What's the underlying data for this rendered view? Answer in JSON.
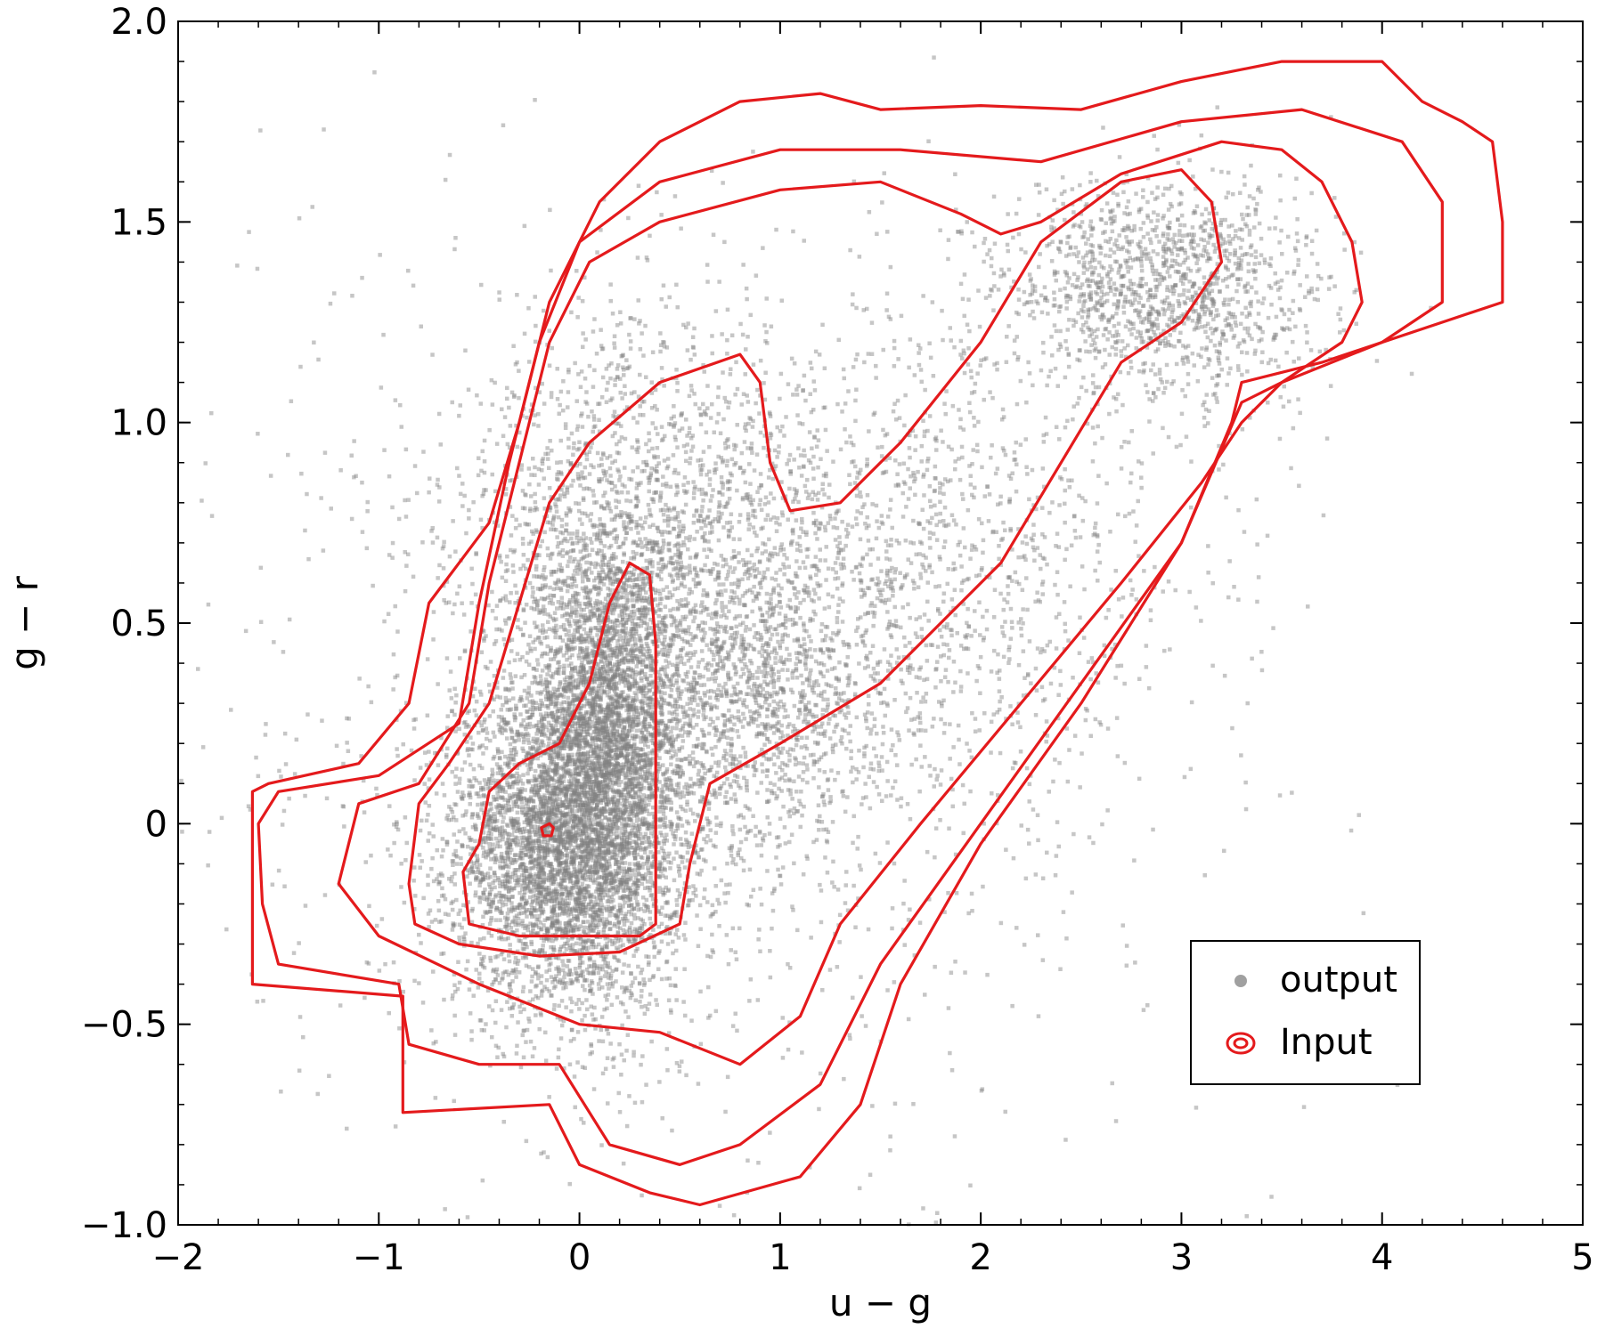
{
  "chart_data": {
    "type": "scatter",
    "xlabel": "u − g",
    "ylabel": "g − r",
    "xlim": [
      -2,
      5
    ],
    "ylim": [
      -1.0,
      2.0
    ],
    "xticks": [
      -2,
      -1,
      0,
      1,
      2,
      3,
      4,
      5
    ],
    "xtick_labels": [
      "−2",
      "−1",
      "0",
      "1",
      "2",
      "3",
      "4",
      "5"
    ],
    "yticks": [
      -1.0,
      -0.5,
      0,
      0.5,
      1.0,
      1.5,
      2.0
    ],
    "ytick_labels": [
      "−1.0",
      "−0.5",
      "0",
      "0.5",
      "1.0",
      "1.5",
      "2.0"
    ],
    "grid": false,
    "legend": {
      "position": "lower-right",
      "entries": [
        {
          "label": "output",
          "marker": "dot",
          "color": "#a0a0a0"
        },
        {
          "label": "Input",
          "marker": "concentric-rings",
          "color": "#e41a1c"
        }
      ]
    },
    "colors": {
      "output": "#808080",
      "input": "#e41a1c"
    },
    "series": [
      {
        "name": "output",
        "kind": "scatter-density",
        "components": [
          {
            "center": [
              -0.05,
              -0.05
            ],
            "spread": [
              0.28,
              0.2
            ],
            "weight": 0.34
          },
          {
            "center": [
              0.15,
              0.3
            ],
            "spread": [
              0.18,
              0.22
            ],
            "weight": 0.16
          },
          {
            "center": [
              0.3,
              0.65
            ],
            "spread": [
              0.45,
              0.3
            ],
            "weight": 0.14
          },
          {
            "center": [
              0.9,
              0.3
            ],
            "spread": [
              0.35,
              0.2
            ],
            "weight": 0.08
          },
          {
            "center": [
              1.6,
              0.65
            ],
            "spread": [
              0.7,
              0.3
            ],
            "weight": 0.1
          },
          {
            "center": [
              2.9,
              1.33
            ],
            "spread": [
              0.4,
              0.14
            ],
            "weight": 0.1
          },
          {
            "center": [
              0.5,
              0.2
            ],
            "spread": [
              1.3,
              0.6
            ],
            "weight": 0.08
          }
        ]
      },
      {
        "name": "Input",
        "kind": "contour",
        "levels": [
          {
            "id": "innermost",
            "points": [
              [
                -0.18,
                -0.03
              ],
              [
                -0.14,
                -0.03
              ],
              [
                -0.13,
                -0.01
              ],
              [
                -0.15,
                0.0
              ],
              [
                -0.19,
                -0.01
              ]
            ]
          },
          {
            "id": "level-2",
            "points": [
              [
                -0.5,
                -0.05
              ],
              [
                -0.45,
                0.08
              ],
              [
                -0.3,
                0.15
              ],
              [
                -0.1,
                0.2
              ],
              [
                0.05,
                0.35
              ],
              [
                0.15,
                0.55
              ],
              [
                0.25,
                0.65
              ],
              [
                0.35,
                0.62
              ],
              [
                0.38,
                0.45
              ],
              [
                0.38,
                0.2
              ],
              [
                0.38,
                -0.1
              ],
              [
                0.38,
                -0.25
              ],
              [
                0.3,
                -0.28
              ],
              [
                0.0,
                -0.28
              ],
              [
                -0.3,
                -0.28
              ],
              [
                -0.55,
                -0.25
              ],
              [
                -0.58,
                -0.12
              ]
            ]
          },
          {
            "id": "level-3",
            "points": [
              [
                -0.85,
                -0.15
              ],
              [
                -0.8,
                0.05
              ],
              [
                -0.65,
                0.15
              ],
              [
                -0.45,
                0.3
              ],
              [
                -0.3,
                0.55
              ],
              [
                -0.15,
                0.8
              ],
              [
                0.05,
                0.95
              ],
              [
                0.4,
                1.1
              ],
              [
                0.8,
                1.17
              ],
              [
                0.9,
                1.1
              ],
              [
                0.95,
                0.9
              ],
              [
                1.05,
                0.78
              ],
              [
                1.3,
                0.8
              ],
              [
                1.6,
                0.95
              ],
              [
                2.0,
                1.2
              ],
              [
                2.3,
                1.45
              ],
              [
                2.7,
                1.6
              ],
              [
                3.0,
                1.63
              ],
              [
                3.15,
                1.55
              ],
              [
                3.2,
                1.4
              ],
              [
                3.0,
                1.25
              ],
              [
                2.7,
                1.15
              ],
              [
                2.4,
                0.9
              ],
              [
                2.1,
                0.65
              ],
              [
                1.5,
                0.35
              ],
              [
                1.0,
                0.2
              ],
              [
                0.65,
                0.1
              ],
              [
                0.55,
                -0.1
              ],
              [
                0.5,
                -0.25
              ],
              [
                0.2,
                -0.32
              ],
              [
                -0.2,
                -0.33
              ],
              [
                -0.6,
                -0.3
              ],
              [
                -0.82,
                -0.25
              ]
            ]
          },
          {
            "id": "level-4",
            "points": [
              [
                -1.2,
                -0.15
              ],
              [
                -1.1,
                0.05
              ],
              [
                -0.8,
                0.1
              ],
              [
                -0.55,
                0.3
              ],
              [
                -0.45,
                0.6
              ],
              [
                -0.3,
                0.9
              ],
              [
                -0.15,
                1.2
              ],
              [
                0.05,
                1.4
              ],
              [
                0.4,
                1.5
              ],
              [
                1.0,
                1.58
              ],
              [
                1.5,
                1.6
              ],
              [
                1.9,
                1.52
              ],
              [
                2.1,
                1.47
              ],
              [
                2.3,
                1.5
              ],
              [
                2.7,
                1.62
              ],
              [
                3.2,
                1.7
              ],
              [
                3.5,
                1.68
              ],
              [
                3.7,
                1.6
              ],
              [
                3.85,
                1.45
              ],
              [
                3.9,
                1.3
              ],
              [
                3.8,
                1.2
              ],
              [
                3.5,
                1.1
              ],
              [
                3.3,
                1.0
              ],
              [
                3.1,
                0.85
              ],
              [
                2.7,
                0.6
              ],
              [
                2.2,
                0.3
              ],
              [
                1.7,
                0.0
              ],
              [
                1.3,
                -0.25
              ],
              [
                1.1,
                -0.48
              ],
              [
                0.8,
                -0.6
              ],
              [
                0.4,
                -0.52
              ],
              [
                0.0,
                -0.5
              ],
              [
                -0.5,
                -0.4
              ],
              [
                -1.0,
                -0.28
              ]
            ]
          },
          {
            "id": "level-5",
            "points": [
              [
                -1.6,
                0.0
              ],
              [
                -1.5,
                0.08
              ],
              [
                -1.0,
                0.12
              ],
              [
                -0.6,
                0.25
              ],
              [
                -0.5,
                0.55
              ],
              [
                -0.35,
                0.9
              ],
              [
                -0.2,
                1.2
              ],
              [
                0.0,
                1.45
              ],
              [
                0.4,
                1.6
              ],
              [
                1.0,
                1.68
              ],
              [
                1.6,
                1.68
              ],
              [
                2.3,
                1.65
              ],
              [
                3.0,
                1.75
              ],
              [
                3.6,
                1.78
              ],
              [
                4.1,
                1.7
              ],
              [
                4.3,
                1.55
              ],
              [
                4.3,
                1.3
              ],
              [
                4.0,
                1.2
              ],
              [
                3.5,
                1.1
              ],
              [
                3.3,
                1.05
              ],
              [
                3.0,
                0.7
              ],
              [
                2.5,
                0.35
              ],
              [
                2.0,
                0.0
              ],
              [
                1.5,
                -0.35
              ],
              [
                1.2,
                -0.65
              ],
              [
                0.8,
                -0.8
              ],
              [
                0.5,
                -0.85
              ],
              [
                0.15,
                -0.8
              ],
              [
                -0.1,
                -0.6
              ],
              [
                -0.5,
                -0.6
              ],
              [
                -0.85,
                -0.55
              ],
              [
                -0.9,
                -0.4
              ],
              [
                -1.5,
                -0.35
              ],
              [
                -1.58,
                -0.2
              ]
            ]
          },
          {
            "id": "level-6",
            "points": [
              [
                -1.63,
                -0.4
              ],
              [
                -1.63,
                0.08
              ],
              [
                -1.55,
                0.1
              ],
              [
                -1.1,
                0.15
              ],
              [
                -0.85,
                0.3
              ],
              [
                -0.75,
                0.55
              ],
              [
                -0.6,
                0.65
              ],
              [
                -0.45,
                0.75
              ],
              [
                -0.3,
                1.0
              ],
              [
                -0.15,
                1.3
              ],
              [
                0.1,
                1.55
              ],
              [
                0.4,
                1.7
              ],
              [
                0.8,
                1.8
              ],
              [
                1.2,
                1.82
              ],
              [
                1.5,
                1.78
              ],
              [
                2.0,
                1.79
              ],
              [
                2.5,
                1.78
              ],
              [
                3.0,
                1.85
              ],
              [
                3.5,
                1.9
              ],
              [
                4.0,
                1.9
              ],
              [
                4.2,
                1.8
              ],
              [
                4.4,
                1.75
              ],
              [
                4.55,
                1.7
              ],
              [
                4.6,
                1.5
              ],
              [
                4.6,
                1.3
              ],
              [
                4.3,
                1.25
              ],
              [
                3.7,
                1.15
              ],
              [
                3.3,
                1.1
              ],
              [
                3.25,
                1.0
              ],
              [
                3.0,
                0.7
              ],
              [
                2.5,
                0.3
              ],
              [
                2.0,
                -0.05
              ],
              [
                1.6,
                -0.4
              ],
              [
                1.4,
                -0.7
              ],
              [
                1.1,
                -0.88
              ],
              [
                0.6,
                -0.95
              ],
              [
                0.35,
                -0.92
              ],
              [
                0.0,
                -0.85
              ],
              [
                -0.15,
                -0.7
              ],
              [
                -0.88,
                -0.72
              ],
              [
                -0.88,
                -0.43
              ],
              [
                -1.63,
                -0.4
              ]
            ]
          }
        ]
      }
    ]
  }
}
